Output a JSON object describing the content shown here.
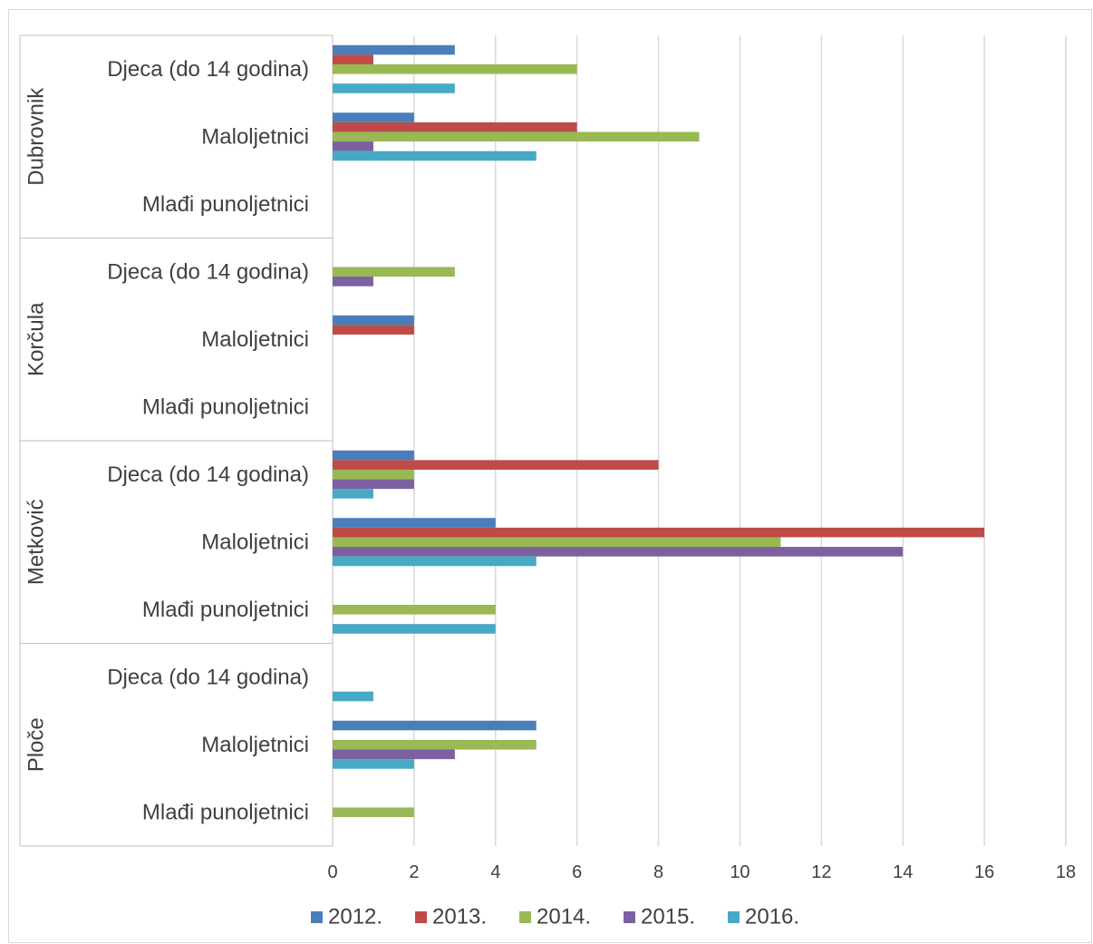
{
  "chart_data": {
    "type": "bar",
    "orientation": "horizontal",
    "groups": [
      "Dubrovnik",
      "Korčula",
      "Metković",
      "Ploče"
    ],
    "categories": [
      "Djeca (do 14 godina)",
      "Maloljetnici",
      "Mlađi punoljetnici"
    ],
    "series": [
      {
        "name": "2012.",
        "color": "#4a7ebb",
        "values": [
          [
            3,
            2,
            0
          ],
          [
            0,
            2,
            0
          ],
          [
            2,
            4,
            0
          ],
          [
            0,
            5,
            0
          ]
        ]
      },
      {
        "name": "2013.",
        "color": "#be4b48",
        "values": [
          [
            1,
            6,
            0
          ],
          [
            0,
            2,
            0
          ],
          [
            8,
            16,
            0
          ],
          [
            0,
            0,
            0
          ]
        ]
      },
      {
        "name": "2014.",
        "color": "#98b954",
        "values": [
          [
            6,
            9,
            0
          ],
          [
            3,
            0,
            0
          ],
          [
            2,
            11,
            4
          ],
          [
            0,
            5,
            2
          ]
        ]
      },
      {
        "name": "2015.",
        "color": "#7d60a0",
        "values": [
          [
            0,
            1,
            0
          ],
          [
            1,
            0,
            0
          ],
          [
            2,
            14,
            0
          ],
          [
            0,
            3,
            0
          ]
        ]
      },
      {
        "name": "2016.",
        "color": "#46aac5",
        "values": [
          [
            3,
            5,
            0
          ],
          [
            0,
            0,
            0
          ],
          [
            1,
            5,
            4
          ],
          [
            1,
            2,
            0
          ]
        ]
      }
    ],
    "xlim": [
      0,
      18
    ],
    "xticks": [
      0,
      2,
      4,
      6,
      8,
      10,
      12,
      14,
      16,
      18
    ],
    "grid": true,
    "legend_position": "bottom"
  }
}
